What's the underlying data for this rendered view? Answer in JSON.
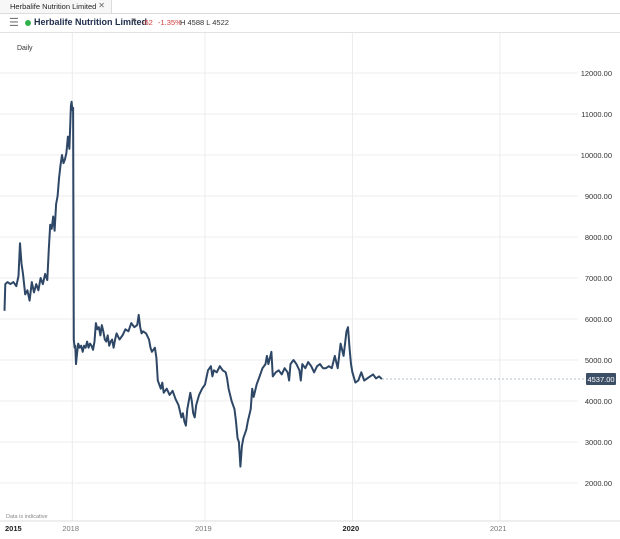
{
  "tab": {
    "title": "Herbalife Nutrition Limited",
    "close": "✕"
  },
  "header": {
    "menu_icon": "hamburger-icon",
    "status_color": "#2fb24a",
    "instrument": "Herbalife Nutrition Limited",
    "caret": "▼",
    "change": "-62",
    "change_pct": "-1.35%",
    "high_low": "H 4588  L 4522"
  },
  "chart_data": {
    "type": "line",
    "interval_label": "Daily",
    "footnote": "Data is indicative",
    "line_color": "#2e4766",
    "current_value_label": "4537.00",
    "current_value": 4537,
    "ylim": [
      1500,
      12500
    ],
    "y_ticks": [
      2000,
      3000,
      4000,
      5000,
      6000,
      7000,
      8000,
      9000,
      10000,
      11000,
      12000
    ],
    "y_tick_labels": [
      "2000.00",
      "3000.00",
      "4000.00",
      "5000.00",
      "6000.00",
      "7000.00",
      "8000.00",
      "9000.00",
      "10000.00",
      "11000.00",
      "12000.00"
    ],
    "x_ticks": [
      {
        "label": "2015",
        "x": 0.0,
        "strong": true
      },
      {
        "label": "2018",
        "x": 0.1,
        "strong": false
      },
      {
        "label": "2019",
        "x": 1.0,
        "strong": false
      },
      {
        "label": "2020",
        "x": 2.0,
        "strong": true
      },
      {
        "label": "2021",
        "x": 3.0,
        "strong": false
      }
    ],
    "grid": true,
    "xlim": [
      -0.35,
      3.53
    ],
    "points": [
      [
        -0.36,
        6200
      ],
      [
        -0.355,
        6850
      ],
      [
        -0.34,
        6900
      ],
      [
        -0.32,
        6850
      ],
      [
        -0.3,
        6900
      ],
      [
        -0.28,
        6800
      ],
      [
        -0.265,
        7050
      ],
      [
        -0.255,
        7850
      ],
      [
        -0.245,
        7350
      ],
      [
        -0.235,
        7100
      ],
      [
        -0.22,
        6600
      ],
      [
        -0.205,
        6700
      ],
      [
        -0.19,
        6450
      ],
      [
        -0.175,
        6900
      ],
      [
        -0.16,
        6650
      ],
      [
        -0.145,
        6850
      ],
      [
        -0.13,
        6700
      ],
      [
        -0.115,
        7000
      ],
      [
        -0.1,
        6850
      ],
      [
        -0.085,
        7100
      ],
      [
        -0.07,
        6950
      ],
      [
        -0.06,
        7700
      ],
      [
        -0.05,
        8300
      ],
      [
        -0.04,
        8200
      ],
      [
        -0.03,
        8500
      ],
      [
        -0.02,
        8150
      ],
      [
        -0.01,
        8800
      ],
      [
        0.0,
        9000
      ],
      [
        0.01,
        9450
      ],
      [
        0.02,
        9750
      ],
      [
        0.03,
        10000
      ],
      [
        0.04,
        9800
      ],
      [
        0.05,
        9900
      ],
      [
        0.06,
        10050
      ],
      [
        0.07,
        10450
      ],
      [
        0.08,
        10150
      ],
      [
        0.09,
        11200
      ],
      [
        0.095,
        11300
      ],
      [
        0.1,
        11100
      ],
      [
        0.105,
        11150
      ],
      [
        0.11,
        5500
      ],
      [
        0.115,
        5300
      ],
      [
        0.12,
        5350
      ],
      [
        0.125,
        4900
      ],
      [
        0.13,
        5100
      ],
      [
        0.14,
        5400
      ],
      [
        0.15,
        5300
      ],
      [
        0.16,
        5350
      ],
      [
        0.17,
        5200
      ],
      [
        0.18,
        5350
      ],
      [
        0.19,
        5300
      ],
      [
        0.2,
        5450
      ],
      [
        0.21,
        5300
      ],
      [
        0.22,
        5400
      ],
      [
        0.23,
        5350
      ],
      [
        0.24,
        5250
      ],
      [
        0.25,
        5450
      ],
      [
        0.26,
        5900
      ],
      [
        0.27,
        5750
      ],
      [
        0.28,
        5800
      ],
      [
        0.29,
        5600
      ],
      [
        0.3,
        5850
      ],
      [
        0.31,
        5700
      ],
      [
        0.32,
        5500
      ],
      [
        0.33,
        5450
      ],
      [
        0.34,
        5600
      ],
      [
        0.35,
        5350
      ],
      [
        0.36,
        5450
      ],
      [
        0.37,
        5500
      ],
      [
        0.38,
        5300
      ],
      [
        0.39,
        5500
      ],
      [
        0.4,
        5650
      ],
      [
        0.42,
        5500
      ],
      [
        0.44,
        5600
      ],
      [
        0.46,
        5750
      ],
      [
        0.48,
        5700
      ],
      [
        0.5,
        5900
      ],
      [
        0.52,
        5800
      ],
      [
        0.54,
        5850
      ],
      [
        0.55,
        6100
      ],
      [
        0.56,
        5800
      ],
      [
        0.57,
        5650
      ],
      [
        0.58,
        5700
      ],
      [
        0.6,
        5650
      ],
      [
        0.62,
        5500
      ],
      [
        0.63,
        5300
      ],
      [
        0.64,
        5200
      ],
      [
        0.66,
        5300
      ],
      [
        0.67,
        5050
      ],
      [
        0.68,
        4500
      ],
      [
        0.7,
        4300
      ],
      [
        0.71,
        4450
      ],
      [
        0.72,
        4200
      ],
      [
        0.74,
        4300
      ],
      [
        0.76,
        4150
      ],
      [
        0.78,
        4250
      ],
      [
        0.8,
        4050
      ],
      [
        0.82,
        3900
      ],
      [
        0.84,
        3600
      ],
      [
        0.85,
        3700
      ],
      [
        0.86,
        3500
      ],
      [
        0.87,
        3400
      ],
      [
        0.88,
        3800
      ],
      [
        0.9,
        4200
      ],
      [
        0.91,
        4000
      ],
      [
        0.92,
        3700
      ],
      [
        0.93,
        3600
      ],
      [
        0.94,
        3900
      ],
      [
        0.96,
        4150
      ],
      [
        0.98,
        4300
      ],
      [
        1.0,
        4400
      ],
      [
        1.02,
        4750
      ],
      [
        1.04,
        4850
      ],
      [
        1.05,
        4600
      ],
      [
        1.06,
        4750
      ],
      [
        1.08,
        4700
      ],
      [
        1.1,
        4850
      ],
      [
        1.12,
        4750
      ],
      [
        1.14,
        4700
      ],
      [
        1.15,
        4550
      ],
      [
        1.16,
        4300
      ],
      [
        1.18,
        4000
      ],
      [
        1.2,
        3800
      ],
      [
        1.21,
        3500
      ],
      [
        1.22,
        3100
      ],
      [
        1.23,
        3000
      ],
      [
        1.24,
        2400
      ],
      [
        1.25,
        2900
      ],
      [
        1.26,
        3100
      ],
      [
        1.28,
        3300
      ],
      [
        1.29,
        3500
      ],
      [
        1.31,
        3800
      ],
      [
        1.32,
        4300
      ],
      [
        1.33,
        4100
      ],
      [
        1.35,
        4400
      ],
      [
        1.37,
        4600
      ],
      [
        1.39,
        4800
      ],
      [
        1.41,
        4900
      ],
      [
        1.42,
        5100
      ],
      [
        1.43,
        4900
      ],
      [
        1.45,
        5200
      ],
      [
        1.46,
        4600
      ],
      [
        1.48,
        4700
      ],
      [
        1.5,
        4750
      ],
      [
        1.52,
        4650
      ],
      [
        1.54,
        4800
      ],
      [
        1.56,
        4700
      ],
      [
        1.57,
        4500
      ],
      [
        1.58,
        4900
      ],
      [
        1.6,
        5000
      ],
      [
        1.62,
        4900
      ],
      [
        1.64,
        4750
      ],
      [
        1.65,
        4500
      ],
      [
        1.66,
        4900
      ],
      [
        1.68,
        4800
      ],
      [
        1.7,
        4950
      ],
      [
        1.72,
        4850
      ],
      [
        1.74,
        4700
      ],
      [
        1.76,
        4850
      ],
      [
        1.78,
        4900
      ],
      [
        1.8,
        4800
      ],
      [
        1.82,
        4800
      ],
      [
        1.84,
        4850
      ],
      [
        1.86,
        4800
      ],
      [
        1.88,
        5100
      ],
      [
        1.9,
        4800
      ],
      [
        1.92,
        5400
      ],
      [
        1.94,
        5100
      ],
      [
        1.96,
        5700
      ],
      [
        1.97,
        5800
      ],
      [
        1.98,
        5300
      ],
      [
        1.99,
        4900
      ],
      [
        2.0,
        4700
      ],
      [
        2.02,
        4450
      ],
      [
        2.04,
        4500
      ],
      [
        2.06,
        4700
      ],
      [
        2.08,
        4500
      ],
      [
        2.1,
        4550
      ],
      [
        2.12,
        4600
      ],
      [
        2.14,
        4650
      ],
      [
        2.16,
        4550
      ],
      [
        2.18,
        4600
      ],
      [
        2.2,
        4537
      ]
    ],
    "point_note": "points are [years-from-2018, price]; x axis tick positions in same units"
  }
}
